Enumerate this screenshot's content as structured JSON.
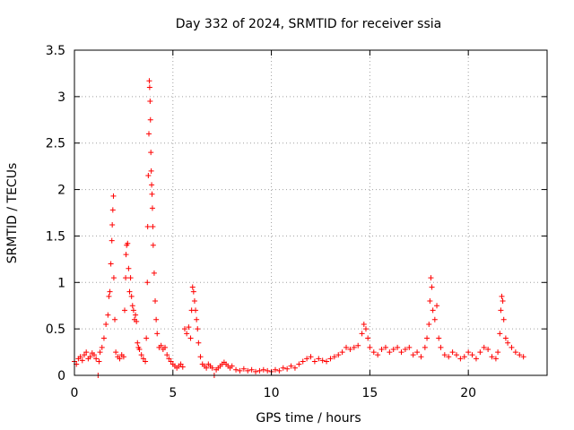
{
  "chart_data": {
    "type": "scatter",
    "title": "Day 332 of 2024, SRMTID for receiver ssia",
    "xlabel": "GPS time / hours",
    "ylabel": "SRMTID / TECUs",
    "xlim": [
      0,
      24
    ],
    "ylim": [
      0,
      3.5
    ],
    "grid": true,
    "marker": "+",
    "color": "#ff0000",
    "xticks": [
      {
        "value": 0,
        "label": "0"
      },
      {
        "value": 5,
        "label": "5"
      },
      {
        "value": 10,
        "label": "10"
      },
      {
        "value": 15,
        "label": "15"
      },
      {
        "value": 20,
        "label": "20"
      }
    ],
    "yticks": [
      {
        "value": 0,
        "label": "0"
      },
      {
        "value": 0.5,
        "label": "0.5"
      },
      {
        "value": 1,
        "label": "1"
      },
      {
        "value": 1.5,
        "label": "1.5"
      },
      {
        "value": 2,
        "label": "2"
      },
      {
        "value": 2.5,
        "label": "2.5"
      },
      {
        "value": 3,
        "label": "3"
      },
      {
        "value": 3.5,
        "label": "3.5"
      }
    ],
    "series": [
      {
        "name": "ssia",
        "points": [
          [
            0.0,
            0.15
          ],
          [
            0.1,
            0.12
          ],
          [
            0.2,
            0.18
          ],
          [
            0.3,
            0.2
          ],
          [
            0.4,
            0.16
          ],
          [
            0.5,
            0.22
          ],
          [
            0.6,
            0.25
          ],
          [
            0.7,
            0.18
          ],
          [
            0.8,
            0.2
          ],
          [
            0.9,
            0.24
          ],
          [
            1.0,
            0.22
          ],
          [
            1.1,
            0.18
          ],
          [
            1.2,
            0.0
          ],
          [
            1.25,
            0.15
          ],
          [
            1.3,
            0.25
          ],
          [
            1.4,
            0.3
          ],
          [
            1.5,
            0.4
          ],
          [
            1.6,
            0.55
          ],
          [
            1.7,
            0.65
          ],
          [
            1.75,
            0.85
          ],
          [
            1.8,
            0.9
          ],
          [
            1.85,
            1.2
          ],
          [
            1.9,
            1.45
          ],
          [
            1.92,
            1.62
          ],
          [
            1.95,
            1.78
          ],
          [
            1.98,
            1.93
          ],
          [
            2.0,
            1.05
          ],
          [
            2.05,
            0.6
          ],
          [
            2.1,
            0.25
          ],
          [
            2.2,
            0.2
          ],
          [
            2.3,
            0.18
          ],
          [
            2.4,
            0.22
          ],
          [
            2.5,
            0.2
          ],
          [
            2.55,
            0.7
          ],
          [
            2.6,
            1.05
          ],
          [
            2.62,
            1.3
          ],
          [
            2.65,
            1.4
          ],
          [
            2.7,
            1.42
          ],
          [
            2.75,
            1.15
          ],
          [
            2.8,
            0.9
          ],
          [
            2.85,
            1.05
          ],
          [
            2.9,
            0.85
          ],
          [
            2.95,
            0.75
          ],
          [
            3.0,
            0.7
          ],
          [
            3.05,
            0.6
          ],
          [
            3.1,
            0.65
          ],
          [
            3.15,
            0.58
          ],
          [
            3.2,
            0.35
          ],
          [
            3.25,
            0.3
          ],
          [
            3.3,
            0.28
          ],
          [
            3.4,
            0.22
          ],
          [
            3.5,
            0.18
          ],
          [
            3.6,
            0.15
          ],
          [
            3.65,
            0.4
          ],
          [
            3.7,
            1.0
          ],
          [
            3.72,
            1.6
          ],
          [
            3.75,
            2.15
          ],
          [
            3.78,
            2.6
          ],
          [
            3.8,
            3.17
          ],
          [
            3.82,
            3.1
          ],
          [
            3.84,
            2.95
          ],
          [
            3.86,
            2.75
          ],
          [
            3.88,
            2.4
          ],
          [
            3.9,
            2.2
          ],
          [
            3.92,
            2.05
          ],
          [
            3.94,
            1.95
          ],
          [
            3.96,
            1.8
          ],
          [
            3.98,
            1.6
          ],
          [
            4.0,
            1.4
          ],
          [
            4.05,
            1.1
          ],
          [
            4.1,
            0.8
          ],
          [
            4.15,
            0.6
          ],
          [
            4.2,
            0.45
          ],
          [
            4.3,
            0.3
          ],
          [
            4.4,
            0.32
          ],
          [
            4.5,
            0.28
          ],
          [
            4.6,
            0.3
          ],
          [
            4.7,
            0.22
          ],
          [
            4.8,
            0.18
          ],
          [
            4.9,
            0.15
          ],
          [
            5.0,
            0.12
          ],
          [
            5.1,
            0.1
          ],
          [
            5.2,
            0.08
          ],
          [
            5.3,
            0.1
          ],
          [
            5.4,
            0.12
          ],
          [
            5.5,
            0.09
          ],
          [
            5.6,
            0.5
          ],
          [
            5.7,
            0.45
          ],
          [
            5.8,
            0.52
          ],
          [
            5.9,
            0.4
          ],
          [
            5.95,
            0.7
          ],
          [
            6.0,
            0.95
          ],
          [
            6.05,
            0.9
          ],
          [
            6.1,
            0.8
          ],
          [
            6.15,
            0.7
          ],
          [
            6.2,
            0.6
          ],
          [
            6.25,
            0.5
          ],
          [
            6.3,
            0.35
          ],
          [
            6.4,
            0.2
          ],
          [
            6.5,
            0.12
          ],
          [
            6.6,
            0.1
          ],
          [
            6.7,
            0.08
          ],
          [
            6.8,
            0.12
          ],
          [
            6.9,
            0.1
          ],
          [
            7.0,
            0.08
          ],
          [
            7.1,
            0.0
          ],
          [
            7.2,
            0.06
          ],
          [
            7.3,
            0.08
          ],
          [
            7.4,
            0.1
          ],
          [
            7.5,
            0.12
          ],
          [
            7.6,
            0.14
          ],
          [
            7.7,
            0.12
          ],
          [
            7.8,
            0.1
          ],
          [
            7.9,
            0.08
          ],
          [
            8.0,
            0.1
          ],
          [
            8.2,
            0.06
          ],
          [
            8.4,
            0.05
          ],
          [
            8.6,
            0.07
          ],
          [
            8.8,
            0.05
          ],
          [
            9.0,
            0.06
          ],
          [
            9.2,
            0.04
          ],
          [
            9.4,
            0.05
          ],
          [
            9.6,
            0.06
          ],
          [
            9.8,
            0.05
          ],
          [
            10.0,
            0.04
          ],
          [
            10.2,
            0.06
          ],
          [
            10.4,
            0.05
          ],
          [
            10.6,
            0.08
          ],
          [
            10.8,
            0.07
          ],
          [
            11.0,
            0.1
          ],
          [
            11.2,
            0.08
          ],
          [
            11.4,
            0.12
          ],
          [
            11.6,
            0.15
          ],
          [
            11.8,
            0.18
          ],
          [
            12.0,
            0.2
          ],
          [
            12.2,
            0.15
          ],
          [
            12.4,
            0.18
          ],
          [
            12.6,
            0.16
          ],
          [
            12.8,
            0.15
          ],
          [
            13.0,
            0.18
          ],
          [
            13.2,
            0.2
          ],
          [
            13.4,
            0.22
          ],
          [
            13.6,
            0.25
          ],
          [
            13.8,
            0.3
          ],
          [
            14.0,
            0.28
          ],
          [
            14.2,
            0.3
          ],
          [
            14.4,
            0.32
          ],
          [
            14.6,
            0.45
          ],
          [
            14.7,
            0.55
          ],
          [
            14.8,
            0.5
          ],
          [
            14.9,
            0.4
          ],
          [
            15.0,
            0.3
          ],
          [
            15.2,
            0.25
          ],
          [
            15.4,
            0.22
          ],
          [
            15.6,
            0.28
          ],
          [
            15.8,
            0.3
          ],
          [
            16.0,
            0.25
          ],
          [
            16.2,
            0.28
          ],
          [
            16.4,
            0.3
          ],
          [
            16.6,
            0.25
          ],
          [
            16.8,
            0.28
          ],
          [
            17.0,
            0.3
          ],
          [
            17.2,
            0.22
          ],
          [
            17.4,
            0.25
          ],
          [
            17.6,
            0.2
          ],
          [
            17.8,
            0.3
          ],
          [
            17.9,
            0.4
          ],
          [
            18.0,
            0.55
          ],
          [
            18.05,
            0.8
          ],
          [
            18.1,
            1.05
          ],
          [
            18.15,
            0.95
          ],
          [
            18.2,
            0.7
          ],
          [
            18.3,
            0.6
          ],
          [
            18.4,
            0.75
          ],
          [
            18.5,
            0.4
          ],
          [
            18.6,
            0.3
          ],
          [
            18.8,
            0.22
          ],
          [
            19.0,
            0.2
          ],
          [
            19.2,
            0.25
          ],
          [
            19.4,
            0.22
          ],
          [
            19.6,
            0.18
          ],
          [
            19.8,
            0.2
          ],
          [
            20.0,
            0.25
          ],
          [
            20.2,
            0.22
          ],
          [
            20.4,
            0.18
          ],
          [
            20.6,
            0.25
          ],
          [
            20.8,
            0.3
          ],
          [
            21.0,
            0.28
          ],
          [
            21.2,
            0.2
          ],
          [
            21.4,
            0.18
          ],
          [
            21.5,
            0.25
          ],
          [
            21.6,
            0.45
          ],
          [
            21.65,
            0.7
          ],
          [
            21.7,
            0.85
          ],
          [
            21.75,
            0.8
          ],
          [
            21.8,
            0.6
          ],
          [
            21.9,
            0.4
          ],
          [
            22.0,
            0.35
          ],
          [
            22.2,
            0.3
          ],
          [
            22.4,
            0.25
          ],
          [
            22.6,
            0.22
          ],
          [
            22.8,
            0.2
          ]
        ]
      }
    ]
  }
}
